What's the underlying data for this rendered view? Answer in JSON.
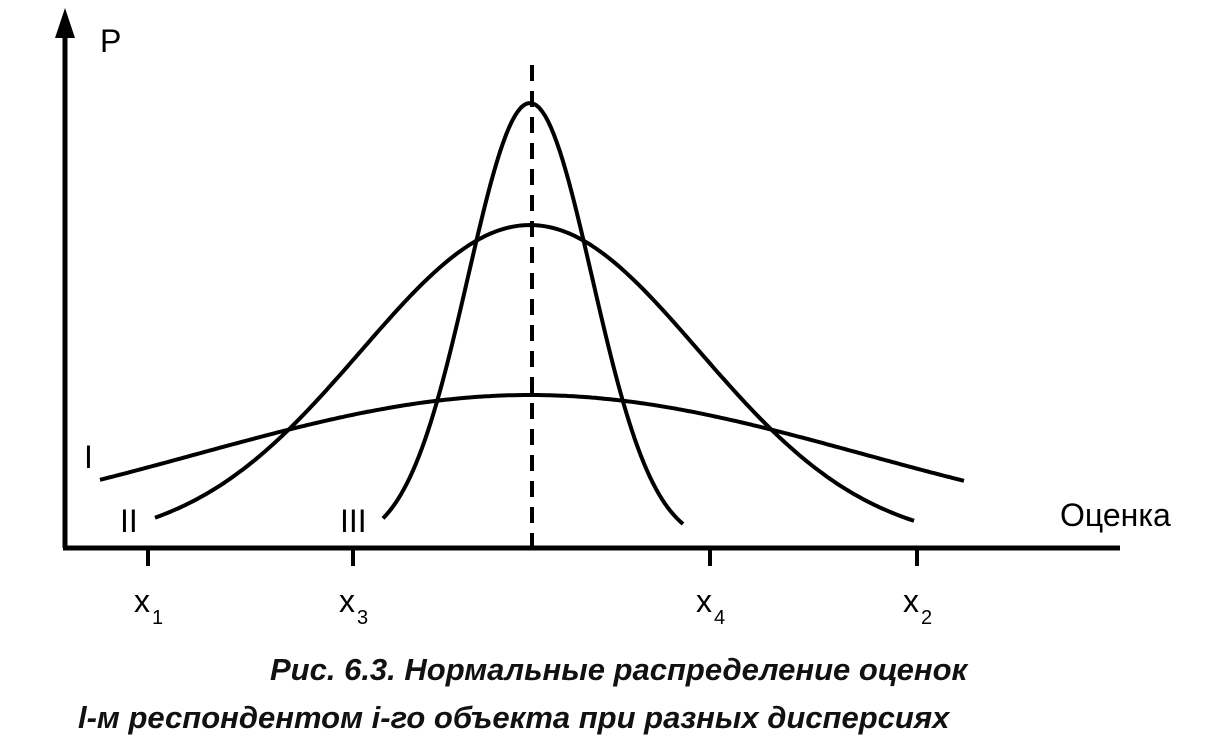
{
  "axes": {
    "y_label": "P",
    "x_label": "Оценка"
  },
  "curves": [
    {
      "label": "I"
    },
    {
      "label": "II"
    },
    {
      "label": "III"
    }
  ],
  "ticks": [
    {
      "letter": "x",
      "index": "1"
    },
    {
      "letter": "x",
      "index": "3"
    },
    {
      "letter": "x",
      "index": "4"
    },
    {
      "letter": "x",
      "index": "2"
    }
  ],
  "caption": {
    "line1": "Рис. 6.3. Нормальные распределение оценок",
    "line2": "l-м респондентом i-го объекта при разных дисперсиях"
  }
}
